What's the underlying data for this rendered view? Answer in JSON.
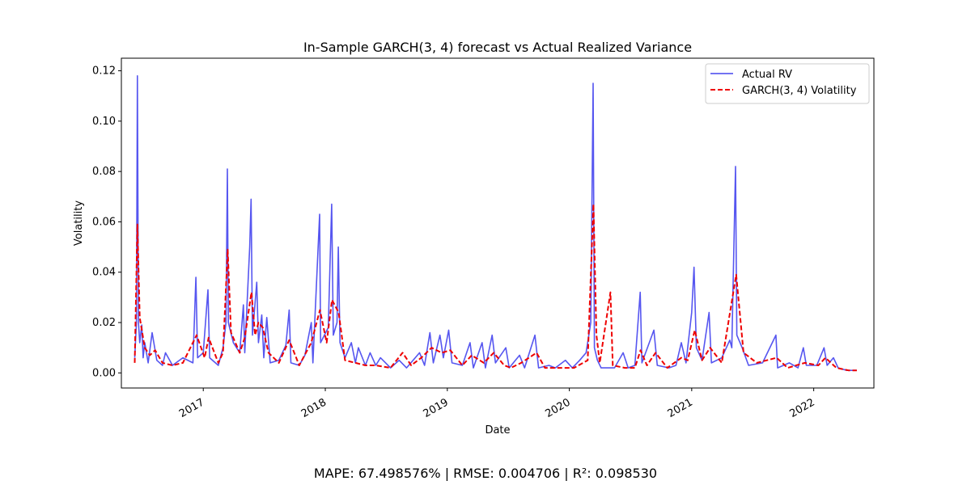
{
  "chart_data": {
    "type": "line",
    "title": "In-Sample GARCH(3, 4) forecast vs Actual Realized Variance",
    "xlabel": "Date",
    "ylabel": "Volatility",
    "xlim": [
      "2016-05-01",
      "2022-06-30"
    ],
    "ylim": [
      -0.006,
      0.125
    ],
    "x_ticks": [
      "2017-01-01",
      "2018-01-01",
      "2019-01-01",
      "2020-01-01",
      "2021-01-01",
      "2022-01-01"
    ],
    "x_tick_labels": [
      "2017",
      "2018",
      "2019",
      "2020",
      "2021",
      "2022"
    ],
    "y_ticks": [
      0.0,
      0.02,
      0.04,
      0.06,
      0.08,
      0.1,
      0.12
    ],
    "y_tick_labels": [
      "0.00",
      "0.02",
      "0.04",
      "0.06",
      "0.08",
      "0.10",
      "0.12"
    ],
    "legend_position": "top-right",
    "series": [
      {
        "name": "Actual RV",
        "color": "#4444ee",
        "style": "solid",
        "points": [
          [
            "2016-06-10",
            0.006
          ],
          [
            "2016-06-15",
            0.02
          ],
          [
            "2016-06-18",
            0.118
          ],
          [
            "2016-06-21",
            0.02
          ],
          [
            "2016-06-25",
            0.012
          ],
          [
            "2016-07-01",
            0.019
          ],
          [
            "2016-07-05",
            0.006
          ],
          [
            "2016-07-10",
            0.012
          ],
          [
            "2016-07-20",
            0.004
          ],
          [
            "2016-08-01",
            0.016
          ],
          [
            "2016-08-15",
            0.005
          ],
          [
            "2016-09-01",
            0.003
          ],
          [
            "2016-09-10",
            0.008
          ],
          [
            "2016-10-01",
            0.003
          ],
          [
            "2016-11-01",
            0.006
          ],
          [
            "2016-12-01",
            0.004
          ],
          [
            "2016-12-10",
            0.038
          ],
          [
            "2016-12-15",
            0.006
          ],
          [
            "2017-01-01",
            0.008
          ],
          [
            "2017-01-15",
            0.033
          ],
          [
            "2017-01-20",
            0.006
          ],
          [
            "2017-02-15",
            0.003
          ],
          [
            "2017-03-01",
            0.01
          ],
          [
            "2017-03-10",
            0.02
          ],
          [
            "2017-03-14",
            0.081
          ],
          [
            "2017-03-17",
            0.02
          ],
          [
            "2017-04-01",
            0.012
          ],
          [
            "2017-04-20",
            0.008
          ],
          [
            "2017-05-01",
            0.027
          ],
          [
            "2017-05-05",
            0.008
          ],
          [
            "2017-05-20",
            0.05
          ],
          [
            "2017-05-24",
            0.069
          ],
          [
            "2017-05-28",
            0.015
          ],
          [
            "2017-06-10",
            0.036
          ],
          [
            "2017-06-15",
            0.012
          ],
          [
            "2017-06-25",
            0.023
          ],
          [
            "2017-07-01",
            0.006
          ],
          [
            "2017-07-10",
            0.022
          ],
          [
            "2017-07-20",
            0.004
          ],
          [
            "2017-08-15",
            0.005
          ],
          [
            "2017-09-05",
            0.011
          ],
          [
            "2017-09-15",
            0.025
          ],
          [
            "2017-09-20",
            0.004
          ],
          [
            "2017-10-15",
            0.003
          ],
          [
            "2017-11-01",
            0.007
          ],
          [
            "2017-11-20",
            0.02
          ],
          [
            "2017-11-25",
            0.004
          ],
          [
            "2017-12-15",
            0.063
          ],
          [
            "2017-12-18",
            0.012
          ],
          [
            "2018-01-10",
            0.018
          ],
          [
            "2018-01-20",
            0.067
          ],
          [
            "2018-01-25",
            0.015
          ],
          [
            "2018-02-05",
            0.02
          ],
          [
            "2018-02-09",
            0.05
          ],
          [
            "2018-02-14",
            0.012
          ],
          [
            "2018-03-01",
            0.006
          ],
          [
            "2018-03-20",
            0.012
          ],
          [
            "2018-04-01",
            0.004
          ],
          [
            "2018-04-10",
            0.01
          ],
          [
            "2018-05-01",
            0.003
          ],
          [
            "2018-05-15",
            0.008
          ],
          [
            "2018-06-01",
            0.003
          ],
          [
            "2018-06-15",
            0.006
          ],
          [
            "2018-07-15",
            0.002
          ],
          [
            "2018-08-10",
            0.005
          ],
          [
            "2018-09-01",
            0.002
          ],
          [
            "2018-10-10",
            0.008
          ],
          [
            "2018-10-25",
            0.003
          ],
          [
            "2018-11-10",
            0.016
          ],
          [
            "2018-11-20",
            0.004
          ],
          [
            "2018-12-10",
            0.015
          ],
          [
            "2018-12-20",
            0.006
          ],
          [
            "2019-01-05",
            0.017
          ],
          [
            "2019-01-15",
            0.004
          ],
          [
            "2019-02-15",
            0.003
          ],
          [
            "2019-03-10",
            0.012
          ],
          [
            "2019-03-20",
            0.002
          ],
          [
            "2019-04-15",
            0.012
          ],
          [
            "2019-04-25",
            0.002
          ],
          [
            "2019-05-15",
            0.015
          ],
          [
            "2019-05-25",
            0.004
          ],
          [
            "2019-06-25",
            0.01
          ],
          [
            "2019-07-05",
            0.002
          ],
          [
            "2019-08-05",
            0.007
          ],
          [
            "2019-08-20",
            0.002
          ],
          [
            "2019-09-20",
            0.015
          ],
          [
            "2019-10-01",
            0.002
          ],
          [
            "2019-11-01",
            0.003
          ],
          [
            "2019-11-20",
            0.002
          ],
          [
            "2019-12-20",
            0.005
          ],
          [
            "2020-01-10",
            0.002
          ],
          [
            "2020-02-01",
            0.005
          ],
          [
            "2020-02-20",
            0.008
          ],
          [
            "2020-03-05",
            0.02
          ],
          [
            "2020-03-12",
            0.115
          ],
          [
            "2020-03-16",
            0.01
          ],
          [
            "2020-03-25",
            0.005
          ],
          [
            "2020-04-05",
            0.002
          ],
          [
            "2020-05-15",
            0.002
          ],
          [
            "2020-06-10",
            0.008
          ],
          [
            "2020-06-25",
            0.002
          ],
          [
            "2020-07-15",
            0.003
          ],
          [
            "2020-07-31",
            0.032
          ],
          [
            "2020-08-05",
            0.004
          ],
          [
            "2020-09-10",
            0.017
          ],
          [
            "2020-09-20",
            0.003
          ],
          [
            "2020-10-25",
            0.002
          ],
          [
            "2020-11-15",
            0.003
          ],
          [
            "2020-12-01",
            0.012
          ],
          [
            "2020-12-15",
            0.004
          ],
          [
            "2021-01-01",
            0.024
          ],
          [
            "2021-01-08",
            0.042
          ],
          [
            "2021-01-15",
            0.01
          ],
          [
            "2021-02-01",
            0.005
          ],
          [
            "2021-02-22",
            0.024
          ],
          [
            "2021-03-01",
            0.004
          ],
          [
            "2021-04-01",
            0.006
          ],
          [
            "2021-04-25",
            0.013
          ],
          [
            "2021-05-01",
            0.01
          ],
          [
            "2021-05-12",
            0.082
          ],
          [
            "2021-05-16",
            0.015
          ],
          [
            "2021-06-01",
            0.01
          ],
          [
            "2021-06-20",
            0.003
          ],
          [
            "2021-08-01",
            0.004
          ],
          [
            "2021-09-10",
            0.015
          ],
          [
            "2021-09-15",
            0.002
          ],
          [
            "2021-10-20",
            0.004
          ],
          [
            "2021-11-15",
            0.002
          ],
          [
            "2021-12-01",
            0.01
          ],
          [
            "2021-12-10",
            0.003
          ],
          [
            "2022-01-10",
            0.003
          ],
          [
            "2022-02-01",
            0.01
          ],
          [
            "2022-02-10",
            0.003
          ],
          [
            "2022-03-01",
            0.006
          ],
          [
            "2022-03-15",
            0.002
          ],
          [
            "2022-04-10",
            0.001
          ],
          [
            "2022-05-10",
            0.001
          ]
        ]
      },
      {
        "name": "GARCH(3, 4) Volatility",
        "color": "#ee0000",
        "style": "dashed",
        "points": [
          [
            "2016-06-10",
            0.004
          ],
          [
            "2016-06-18",
            0.059
          ],
          [
            "2016-06-25",
            0.022
          ],
          [
            "2016-07-10",
            0.01
          ],
          [
            "2016-07-25",
            0.007
          ],
          [
            "2016-08-10",
            0.009
          ],
          [
            "2016-09-01",
            0.004
          ],
          [
            "2016-10-01",
            0.003
          ],
          [
            "2016-11-01",
            0.004
          ],
          [
            "2016-12-12",
            0.015
          ],
          [
            "2017-01-05",
            0.006
          ],
          [
            "2017-01-17",
            0.014
          ],
          [
            "2017-02-15",
            0.004
          ],
          [
            "2017-03-01",
            0.008
          ],
          [
            "2017-03-15",
            0.049
          ],
          [
            "2017-03-25",
            0.016
          ],
          [
            "2017-04-20",
            0.008
          ],
          [
            "2017-05-05",
            0.014
          ],
          [
            "2017-05-25",
            0.032
          ],
          [
            "2017-06-05",
            0.015
          ],
          [
            "2017-06-15",
            0.02
          ],
          [
            "2017-06-28",
            0.018
          ],
          [
            "2017-07-15",
            0.008
          ],
          [
            "2017-08-15",
            0.004
          ],
          [
            "2017-09-15",
            0.013
          ],
          [
            "2017-10-15",
            0.003
          ],
          [
            "2017-11-20",
            0.012
          ],
          [
            "2017-12-16",
            0.025
          ],
          [
            "2018-01-05",
            0.012
          ],
          [
            "2018-01-21",
            0.029
          ],
          [
            "2018-02-10",
            0.024
          ],
          [
            "2018-03-01",
            0.005
          ],
          [
            "2018-04-01",
            0.004
          ],
          [
            "2018-05-01",
            0.003
          ],
          [
            "2018-06-01",
            0.003
          ],
          [
            "2018-07-15",
            0.002
          ],
          [
            "2018-08-20",
            0.008
          ],
          [
            "2018-09-15",
            0.003
          ],
          [
            "2018-10-15",
            0.006
          ],
          [
            "2018-11-15",
            0.01
          ],
          [
            "2018-12-15",
            0.008
          ],
          [
            "2019-01-10",
            0.009
          ],
          [
            "2019-02-15",
            0.003
          ],
          [
            "2019-03-15",
            0.007
          ],
          [
            "2019-04-20",
            0.004
          ],
          [
            "2019-05-20",
            0.008
          ],
          [
            "2019-06-20",
            0.003
          ],
          [
            "2019-07-10",
            0.002
          ],
          [
            "2019-08-10",
            0.004
          ],
          [
            "2019-09-25",
            0.008
          ],
          [
            "2019-10-20",
            0.002
          ],
          [
            "2019-12-01",
            0.002
          ],
          [
            "2020-01-15",
            0.002
          ],
          [
            "2020-02-25",
            0.005
          ],
          [
            "2020-03-13",
            0.067
          ],
          [
            "2020-03-22",
            0.015
          ],
          [
            "2020-04-01",
            0.004
          ],
          [
            "2020-04-25",
            0.025
          ],
          [
            "2020-05-03",
            0.032
          ],
          [
            "2020-05-10",
            0.003
          ],
          [
            "2020-06-15",
            0.002
          ],
          [
            "2020-07-15",
            0.002
          ],
          [
            "2020-08-01",
            0.009
          ],
          [
            "2020-08-20",
            0.003
          ],
          [
            "2020-09-15",
            0.008
          ],
          [
            "2020-10-20",
            0.002
          ],
          [
            "2020-12-01",
            0.006
          ],
          [
            "2020-12-20",
            0.005
          ],
          [
            "2021-01-10",
            0.017
          ],
          [
            "2021-02-01",
            0.005
          ],
          [
            "2021-02-25",
            0.01
          ],
          [
            "2021-04-01",
            0.004
          ],
          [
            "2021-05-14",
            0.039
          ],
          [
            "2021-06-05",
            0.008
          ],
          [
            "2021-07-15",
            0.004
          ],
          [
            "2021-09-12",
            0.006
          ],
          [
            "2021-10-15",
            0.002
          ],
          [
            "2021-12-05",
            0.004
          ],
          [
            "2022-01-15",
            0.003
          ],
          [
            "2022-02-05",
            0.006
          ],
          [
            "2022-03-10",
            0.002
          ],
          [
            "2022-04-15",
            0.001
          ],
          [
            "2022-05-10",
            0.001
          ]
        ]
      }
    ]
  },
  "metrics_text": "MAPE: 67.498576% | RMSE: 0.004706 | R²: 0.098530"
}
